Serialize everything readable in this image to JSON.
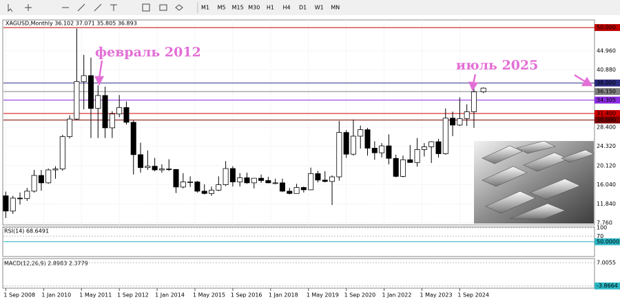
{
  "toolbar": {
    "timeframes": [
      "M1",
      "M5",
      "M15",
      "M30",
      "H1",
      "H4",
      "D1",
      "W1",
      "MN"
    ]
  },
  "chart_data": {
    "type": "candlestick",
    "title": "XAGUSD,Monthly  36.102 37.071 35.805 36.893",
    "annotations": [
      "февраль 2012",
      "июль 2025"
    ],
    "x": [
      0,
      3,
      6,
      9,
      12,
      15,
      18,
      21,
      24,
      27,
      30,
      33,
      36,
      39,
      42,
      45,
      48,
      51,
      54,
      57,
      60,
      63,
      66,
      69,
      72,
      75,
      78,
      81,
      84,
      87,
      90,
      93,
      96,
      99,
      102,
      105,
      108,
      111,
      114,
      117,
      120,
      123,
      126,
      129,
      132,
      135,
      138,
      141,
      144,
      147,
      150,
      153,
      156,
      159,
      162,
      165,
      168,
      171,
      174,
      177,
      180,
      183,
      186,
      189,
      192,
      195,
      198,
      202
    ],
    "open": [
      13.6,
      10.3,
      13.1,
      13.0,
      14.6,
      18.0,
      16.4,
      19.2,
      19.4,
      26.4,
      30.2,
      38.3,
      39.6,
      32.5,
      35.3,
      28.3,
      31.3,
      32.7,
      29.5,
      22.5,
      19.7,
      20.0,
      19.2,
      19.4,
      19.3,
      15.5,
      16.6,
      16.6,
      14.6,
      14.1,
      14.8,
      16.0,
      19.5,
      16.6,
      17.5,
      16.4,
      17.4,
      16.9,
      16.4,
      16.4,
      14.6,
      14.1,
      15.4,
      14.9,
      18.4,
      17.0,
      16.7,
      17.7,
      27.3,
      22.6,
      26.5,
      27.9,
      23.9,
      22.9,
      24.4,
      21.7,
      17.8,
      21.4,
      20.8,
      23.6,
      24.2,
      25.3,
      22.7,
      30.4,
      28.9,
      30.3,
      31.8,
      36.102
    ],
    "high": [
      14.5,
      13.6,
      14.3,
      15.3,
      19.2,
      19.2,
      19.5,
      20.0,
      26.8,
      31.0,
      49.8,
      44.1,
      43.5,
      37.5,
      37.2,
      31.9,
      35.4,
      34.0,
      29.9,
      25.1,
      23.4,
      21.8,
      20.4,
      21.5,
      19.4,
      18.5,
      17.8,
      16.8,
      16.1,
      15.6,
      17.8,
      21.1,
      20.0,
      18.5,
      18.6,
      17.4,
      18.2,
      17.7,
      17.3,
      17.3,
      15.3,
      16.2,
      15.6,
      19.7,
      19.0,
      18.9,
      18.0,
      29.8,
      27.8,
      30.1,
      28.8,
      28.3,
      25.4,
      25.0,
      26.9,
      22.5,
      22.3,
      24.6,
      26.1,
      25.0,
      25.4,
      25.9,
      32.5,
      31.8,
      34.9,
      33.4,
      36.9,
      37.071
    ],
    "low": [
      8.8,
      9.7,
      11.7,
      12.5,
      14.3,
      14.7,
      16.2,
      17.3,
      19.0,
      26.0,
      30.0,
      32.3,
      26.1,
      26.1,
      26.1,
      26.1,
      30.6,
      29.0,
      18.2,
      18.6,
      19.2,
      18.9,
      18.6,
      19.0,
      14.2,
      15.2,
      15.5,
      14.3,
      13.9,
      13.6,
      14.6,
      15.7,
      15.6,
      15.6,
      16.2,
      15.2,
      16.4,
      16.3,
      16.1,
      14.4,
      13.9,
      14.1,
      14.3,
      14.8,
      16.5,
      16.5,
      11.6,
      16.9,
      21.8,
      22.3,
      23.8,
      22.3,
      21.4,
      21.9,
      20.4,
      17.6,
      17.6,
      20.8,
      19.9,
      22.1,
      20.7,
      21.9,
      22.5,
      26.5,
      28.7,
      28.7,
      28.3,
      35.805
    ],
    "close": [
      10.3,
      13.1,
      13.0,
      14.6,
      18.0,
      16.4,
      19.2,
      19.4,
      26.4,
      30.2,
      38.3,
      39.6,
      32.5,
      35.3,
      28.3,
      31.3,
      32.7,
      29.5,
      22.5,
      19.7,
      20.0,
      19.2,
      19.4,
      19.3,
      15.5,
      16.6,
      16.6,
      14.6,
      14.1,
      14.8,
      16.0,
      19.5,
      16.6,
      17.5,
      16.4,
      17.4,
      16.9,
      16.4,
      16.4,
      14.6,
      14.1,
      15.4,
      14.9,
      18.4,
      17.0,
      16.7,
      17.7,
      27.3,
      22.6,
      26.5,
      27.9,
      23.9,
      22.9,
      24.4,
      21.7,
      17.8,
      21.4,
      20.8,
      23.6,
      24.2,
      25.3,
      22.7,
      30.4,
      28.9,
      30.3,
      31.8,
      36.1,
      36.893
    ],
    "xlim": [
      -1,
      249
    ],
    "xticks": [
      {
        "value": 0,
        "label": "1 Sep 2008"
      },
      {
        "value": 16,
        "label": "1 Jan 2010"
      },
      {
        "value": 32,
        "label": "1 May 2011"
      },
      {
        "value": 48,
        "label": "1 Sep 2012"
      },
      {
        "value": 64,
        "label": "1 Jan 2014"
      },
      {
        "value": 80,
        "label": "1 May 2015"
      },
      {
        "value": 96,
        "label": "1 Sep 2016"
      },
      {
        "value": 112,
        "label": "1 Jan 2018"
      },
      {
        "value": 128,
        "label": "1 May 2019"
      },
      {
        "value": 144,
        "label": "1 Sep 2020"
      },
      {
        "value": 160,
        "label": "1 Jan 2022"
      },
      {
        "value": 176,
        "label": "1 May 2023"
      },
      {
        "value": 192,
        "label": "1 Sep 2024"
      }
    ],
    "ylim": [
      7.3,
      51.2
    ],
    "yticks": [
      {
        "value": 7.76,
        "label": "7.760"
      },
      {
        "value": 11.84,
        "label": "11.840"
      },
      {
        "value": 16.04,
        "label": "16.040"
      },
      {
        "value": 20.12,
        "label": "20.120"
      },
      {
        "value": 24.32,
        "label": "24.320"
      },
      {
        "value": 28.4,
        "label": "28.400"
      },
      {
        "value": 40.88,
        "label": "40.880"
      },
      {
        "value": 44.96,
        "label": "44.960"
      }
    ],
    "levels": [
      {
        "value": 50,
        "label": "50.000",
        "color": "#c00000"
      },
      {
        "value": 38,
        "label": "38.000",
        "color": "#2b2b80"
      },
      {
        "value": 36.15,
        "label": "36.150",
        "color": "#808080"
      },
      {
        "value": 34.305,
        "label": "34.305",
        "color": "#8a2be2"
      },
      {
        "value": 31.4,
        "label": "31.400",
        "color": "#d00000"
      },
      {
        "value": 30,
        "label": "30.000",
        "color": "#800000"
      }
    ],
    "grid": true
  },
  "rsi": {
    "title": "RSI(14) 68.6491",
    "ylim": [
      0,
      100
    ],
    "yticks": [
      100,
      70,
      {
        "value": 50,
        "label": "50.0000"
      }
    ]
  },
  "macd": {
    "title": "MACD(12,26,9) 2.8983 2.3779",
    "ylim": [
      -4.6,
      8.6
    ],
    "yticks": [
      7.0055,
      -3.8664
    ]
  }
}
